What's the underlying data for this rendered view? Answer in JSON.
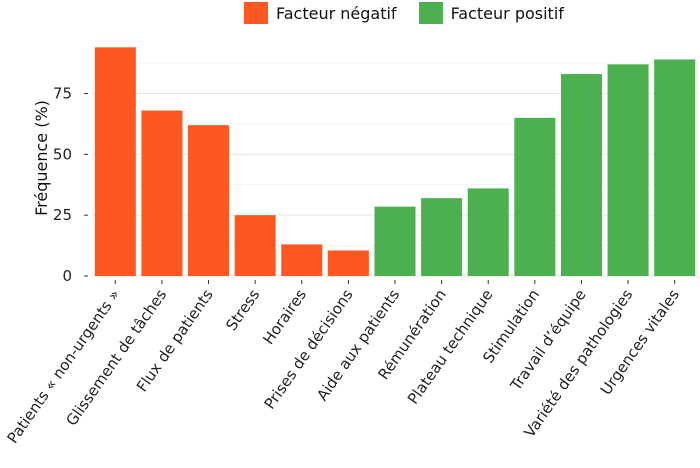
{
  "chart_data": {
    "type": "bar",
    "ylabel": "Fréquence (%)",
    "ylim": [
      0,
      97
    ],
    "yticks": [
      0,
      25,
      50,
      75
    ],
    "grid": true,
    "legend_position": "top",
    "legend": [
      {
        "name": "Facteur négatif",
        "color": "#ff5722"
      },
      {
        "name": "Facteur positif",
        "color": "#4caf50"
      }
    ],
    "categories": [
      "Patients « non-urgents »",
      "Glissement de tâches",
      "Flux de patients",
      "Stress",
      "Horaires",
      "Prises de décisions",
      "Aide aux patients",
      "Rémunération",
      "Plateau technique",
      "Stimulation",
      "Travail d’équipe",
      "Variété des pathologies",
      "Urgences vitales"
    ],
    "values": [
      94,
      68,
      62,
      25,
      13,
      10.5,
      28.5,
      32,
      36,
      65,
      83,
      87,
      89
    ],
    "groups": [
      "Facteur négatif",
      "Facteur négatif",
      "Facteur négatif",
      "Facteur négatif",
      "Facteur négatif",
      "Facteur négatif",
      "Facteur positif",
      "Facteur positif",
      "Facteur positif",
      "Facteur positif",
      "Facteur positif",
      "Facteur positif",
      "Facteur positif"
    ]
  }
}
